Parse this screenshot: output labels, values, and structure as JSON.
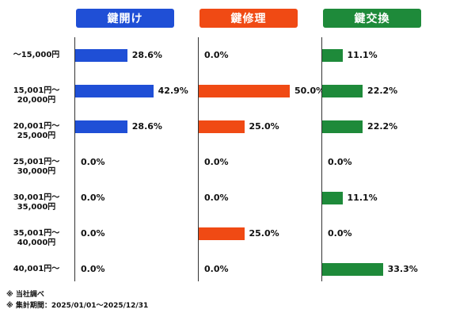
{
  "chart_data": {
    "type": "bar",
    "orientation": "horizontal",
    "categories": [
      "～15,000円",
      "15,001円～20,000円",
      "20,001円～25,000円",
      "25,001円～30,000円",
      "30,001円～35,000円",
      "35,001円～40,000円",
      "40,001円～"
    ],
    "series": [
      {
        "name": "鍵開け",
        "color": "#1f4fd6",
        "values": [
          28.6,
          42.9,
          28.6,
          0.0,
          0.0,
          0.0,
          0.0
        ],
        "labels": [
          "28.6%",
          "42.9%",
          "28.6%",
          "0.0%",
          "0.0%",
          "0.0%",
          "0.0%"
        ]
      },
      {
        "name": "鍵修理",
        "color": "#f04a14",
        "values": [
          0.0,
          50.0,
          25.0,
          0.0,
          0.0,
          25.0,
          0.0
        ],
        "labels": [
          "0.0%",
          "50.0%",
          "25.0%",
          "0.0%",
          "0.0%",
          "25.0%",
          "0.0%"
        ]
      },
      {
        "name": "鍵交換",
        "color": "#1e8a3a",
        "values": [
          11.1,
          22.2,
          22.2,
          0.0,
          11.1,
          0.0,
          33.3
        ],
        "labels": [
          "11.1%",
          "22.2%",
          "22.2%",
          "0.0%",
          "11.1%",
          "0.0%",
          "33.3%"
        ]
      }
    ],
    "xlim": [
      0,
      50
    ],
    "grid": false,
    "legend": "none"
  },
  "footnotes": [
    "※ 当社調べ",
    "※ 集計期間：2025/01/01～2025/12/31"
  ]
}
